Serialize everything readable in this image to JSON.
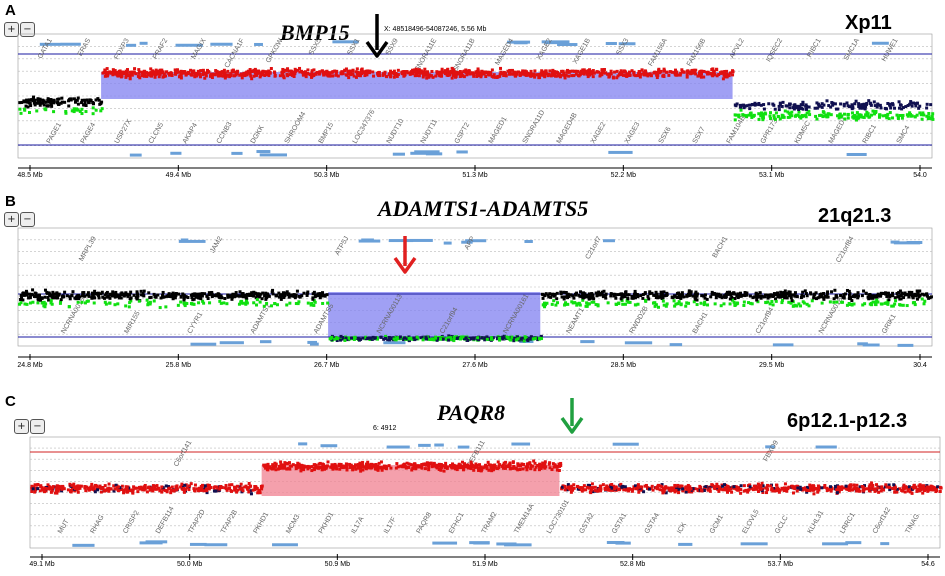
{
  "panels": [
    {
      "letter": "A",
      "gene": "BMP15",
      "region": "Xp11",
      "coord_text": "X: 48518496-54087246, 5.56 Mb",
      "arrow_color": "#000000",
      "ticks": [
        "48.5 Mb",
        "49.4 Mb",
        "50.3 Mb",
        "51.3 Mb",
        "52.2 Mb",
        "53.1 Mb",
        "54.0"
      ],
      "genes_top": [
        "GATA1",
        "ERAS",
        "FOXP3",
        "PRAF2",
        "MAGIX",
        "CACNA1F",
        "GPKOW",
        "SSX5",
        "SSX1",
        "SSX9",
        "SNORA11E",
        "SNORA11B",
        "MAGED4",
        "XAGE2",
        "XAGE1B",
        "SSX3",
        "FAM156A",
        "FAM156B",
        "APVL2",
        "IQSEC2",
        "RIBC1",
        "SMC1A",
        "HUWE1"
      ],
      "genes_bottom": [
        "PAGE1",
        "PAGE4",
        "USP27X",
        "CLCN5",
        "AKAP4",
        "CCNB3",
        "DGKK",
        "SHROOM4",
        "BMP15",
        "LOC347376",
        "NUDT10",
        "NUDT11",
        "GSPT2",
        "MAGED1",
        "SNORA11D",
        "MAGED4B",
        "XAGE2",
        "XAGE3",
        "SSX6",
        "SSX7",
        "FAM104B",
        "GPR173",
        "KDM5C",
        "MAGED1",
        "RIBC1",
        "SMC4"
      ],
      "chart_data": {
        "type": "scatter",
        "xlabel": "",
        "ylabel": "",
        "xlim": [
          48.5,
          54.0
        ],
        "segments": [
          {
            "x": [
              48.5,
              49.0
            ],
            "level": "normal"
          },
          {
            "x": [
              49.0,
              52.8
            ],
            "level": "gain"
          },
          {
            "x": [
              52.8,
              54.0
            ],
            "level": "loss"
          }
        ],
        "shaded_region": {
          "x": [
            49.0,
            52.8
          ],
          "color": "#8080f0"
        },
        "arrow_at": 50.6
      }
    },
    {
      "letter": "B",
      "gene": "ADAMTS1-ADAMTS5",
      "region": "21q21.3",
      "arrow_color": "#e02020",
      "ticks": [
        "24.8 Mb",
        "25.8 Mb",
        "26.7 Mb",
        "27.6 Mb",
        "28.5 Mb",
        "29.5 Mb",
        "30.4"
      ],
      "genes_top": [
        "MRPL39",
        "JAM2",
        "ATP5J",
        "APP",
        "C21orf7",
        "BACH1",
        "C21orf84"
      ],
      "genes_bottom": [
        "NCRNA00158",
        "MIR155",
        "CYYR1",
        "ADAMTS1",
        "ADAMTS5",
        "NCRNA00113",
        "C21orf94",
        "NCRNA00161",
        "NEAMT1",
        "RWDD2B",
        "BACH1",
        "C21orf94",
        "NCRNA00189",
        "GRIK1"
      ],
      "chart_data": {
        "type": "scatter",
        "xlabel": "",
        "ylabel": "",
        "xlim": [
          24.8,
          30.4
        ],
        "segments": [
          {
            "x": [
              24.8,
              26.7
            ],
            "level": "normal"
          },
          {
            "x": [
              26.7,
              28.0
            ],
            "level": "loss"
          },
          {
            "x": [
              28.0,
              30.4
            ],
            "level": "normal"
          }
        ],
        "shaded_region": {
          "x": [
            26.7,
            28.0
          ],
          "color": "#8080f0"
        },
        "arrow_at": 27.2
      }
    },
    {
      "letter": "C",
      "gene": "PAQR8",
      "region": "6p12.1-p12.3",
      "coord_text": "6: 4912",
      "arrow_color": "#20a040",
      "ticks": [
        "49.1 Mb",
        "50.0 Mb",
        "50.9 Mb",
        "51.9 Mb",
        "52.8 Mb",
        "53.7 Mb",
        "54.6"
      ],
      "genes_top": [
        "C6orf141",
        "DEFB111",
        "FBXO9"
      ],
      "genes_bottom": [
        "MUT",
        "RHAG",
        "CRISP2",
        "DEFB114",
        "TFAP2D",
        "TFAP2B",
        "PKHD1",
        "MCM3",
        "PKHD1",
        "IL17A",
        "IL17F",
        "PAQR8",
        "EFHC1",
        "TRAM2",
        "TMEM14A",
        "LOC730101",
        "GSTA2",
        "GSTA1",
        "GSTA4",
        "ICK",
        "GCM1",
        "ELOVL5",
        "GCLC",
        "KLHL31",
        "LRRC1",
        "C6orf142",
        "TINAG"
      ],
      "chart_data": {
        "type": "scatter",
        "xlabel": "",
        "ylabel": "",
        "xlim": [
          49.1,
          54.6
        ],
        "segments": [
          {
            "x": [
              49.1,
              50.5
            ],
            "level": "normal"
          },
          {
            "x": [
              50.5,
              52.3
            ],
            "level": "gain"
          },
          {
            "x": [
              52.3,
              54.6
            ],
            "level": "normal"
          }
        ],
        "shaded_region": {
          "x": [
            50.5,
            52.3
          ],
          "color": "#f07080"
        },
        "arrow_at": 51.5
      }
    }
  ],
  "colors": {
    "blue_line": "#1a1aa0",
    "red_line": "#d02020",
    "shade_blue": "#8080f0",
    "shade_red": "#f08090",
    "dot_red": "#e01010",
    "dot_black": "#000000",
    "dot_green": "#10e010",
    "dot_navy": "#101050",
    "gene_box": "#6aa0d8"
  }
}
